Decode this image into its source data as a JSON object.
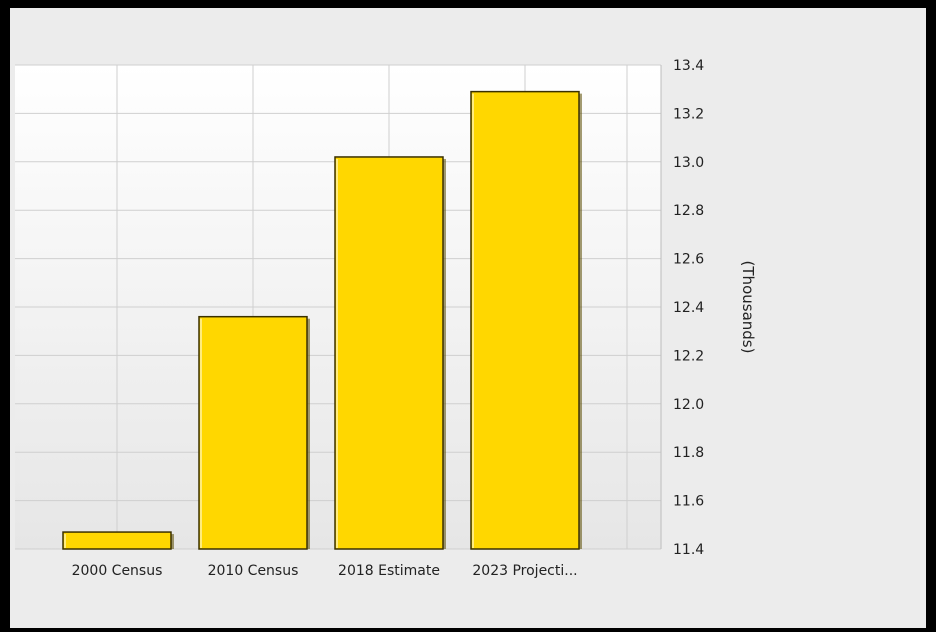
{
  "chart_data": {
    "type": "bar",
    "categories": [
      "2000 Census",
      "2010 Census",
      "2018 Estimate",
      "2023 Projecti..."
    ],
    "values": [
      11.47,
      12.36,
      13.02,
      13.29
    ],
    "ylabel": "(Thousands)",
    "ylim": [
      11.4,
      13.4
    ],
    "yticks": [
      "11.4",
      "11.6",
      "11.8",
      "12.0",
      "12.2",
      "12.4",
      "12.6",
      "12.8",
      "13.0",
      "13.2",
      "13.4"
    ],
    "grid": true,
    "y_axis_side": "right",
    "bar_color": "#FFD700",
    "bar_edge_color": "#3a3000"
  }
}
